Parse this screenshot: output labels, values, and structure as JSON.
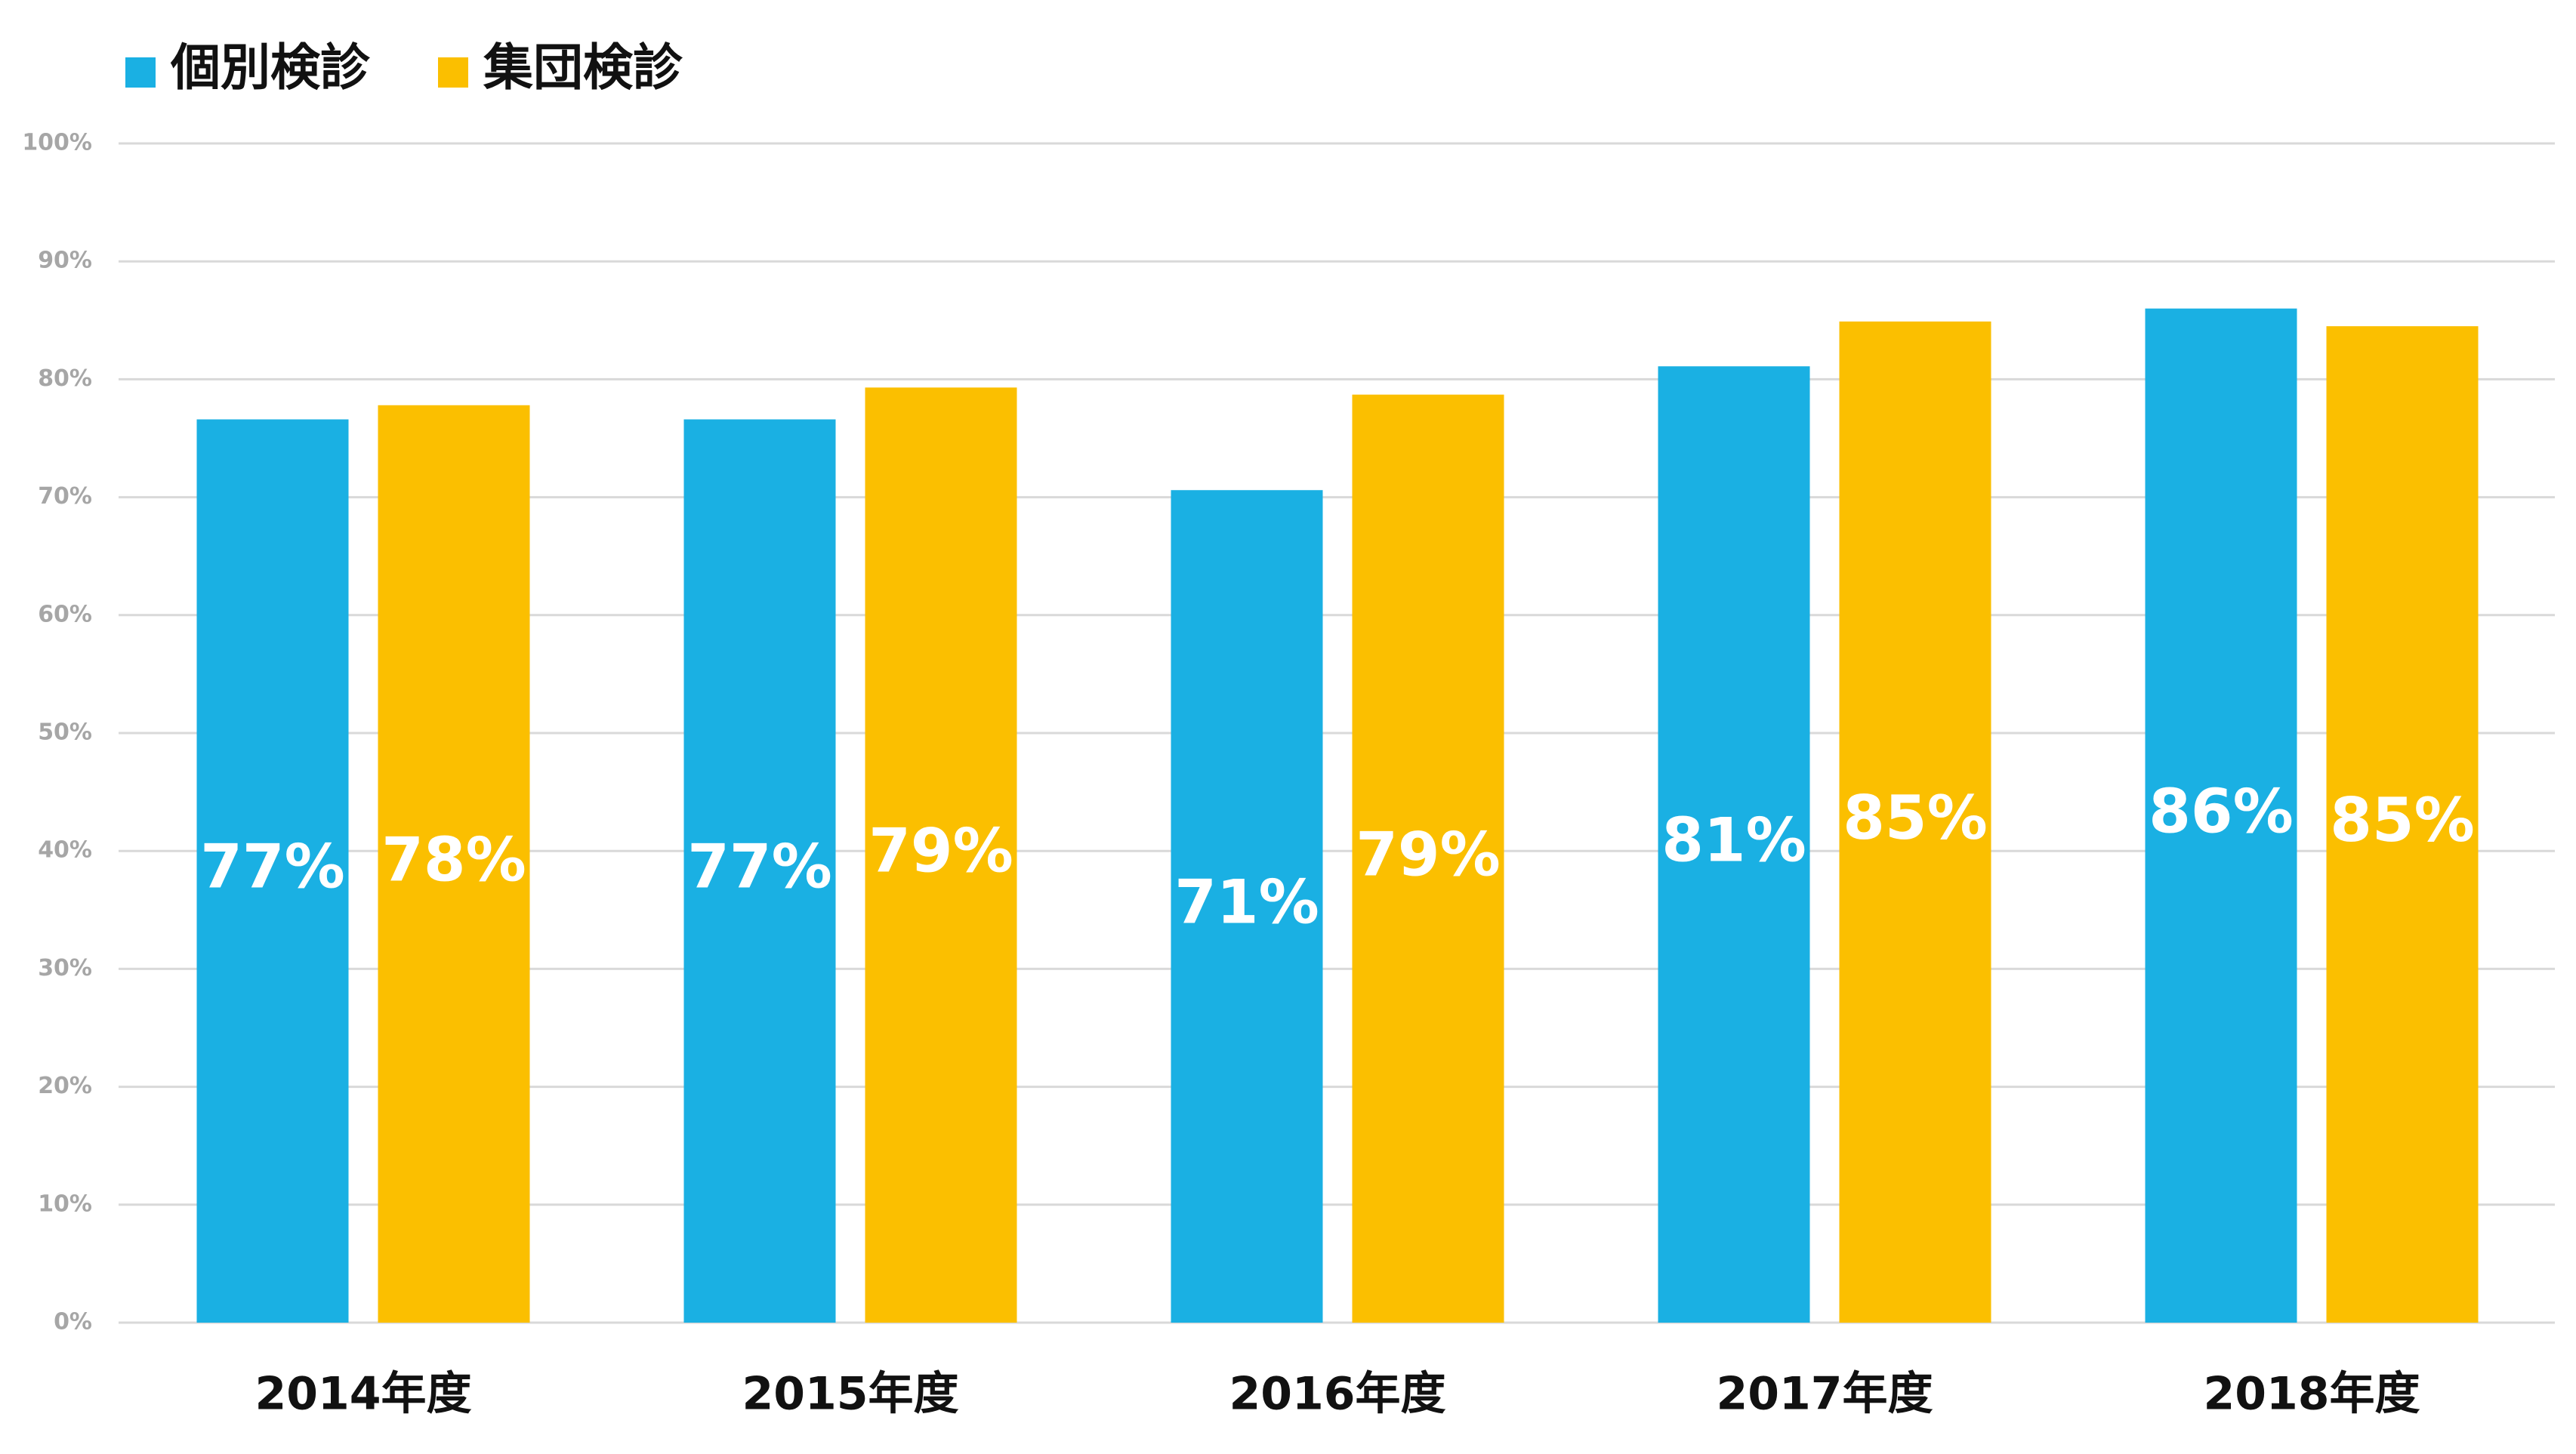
{
  "chart_data": {
    "type": "bar",
    "categories": [
      "2014年度",
      "2015年度",
      "2016年度",
      "2017年度",
      "2018年度"
    ],
    "series": [
      {
        "name": "個別検診",
        "color": "#1ab0e3",
        "values": [
          76.6,
          76.6,
          70.6,
          81.1,
          86.0
        ],
        "value_labels": [
          "77%",
          "77%",
          "71%",
          "81%",
          "86%"
        ]
      },
      {
        "name": "集団検診",
        "color": "#fbbf00",
        "values": [
          77.8,
          79.3,
          78.7,
          84.9,
          84.5
        ],
        "value_labels": [
          "78%",
          "79%",
          "79%",
          "85%",
          "85%"
        ]
      }
    ],
    "ylim": [
      0,
      100
    ],
    "yticks": [
      {
        "value": 0,
        "label": "0%"
      },
      {
        "value": 10,
        "label": "10%"
      },
      {
        "value": 20,
        "label": "20%"
      },
      {
        "value": 30,
        "label": "30%"
      },
      {
        "value": 40,
        "label": "40%"
      },
      {
        "value": 50,
        "label": "50%"
      },
      {
        "value": 60,
        "label": "60%"
      },
      {
        "value": 70,
        "label": "70%"
      },
      {
        "value": 80,
        "label": "80%"
      },
      {
        "value": 90,
        "label": "90%"
      },
      {
        "value": 100,
        "label": "100%"
      }
    ],
    "grid": true,
    "legend": "top-left"
  }
}
